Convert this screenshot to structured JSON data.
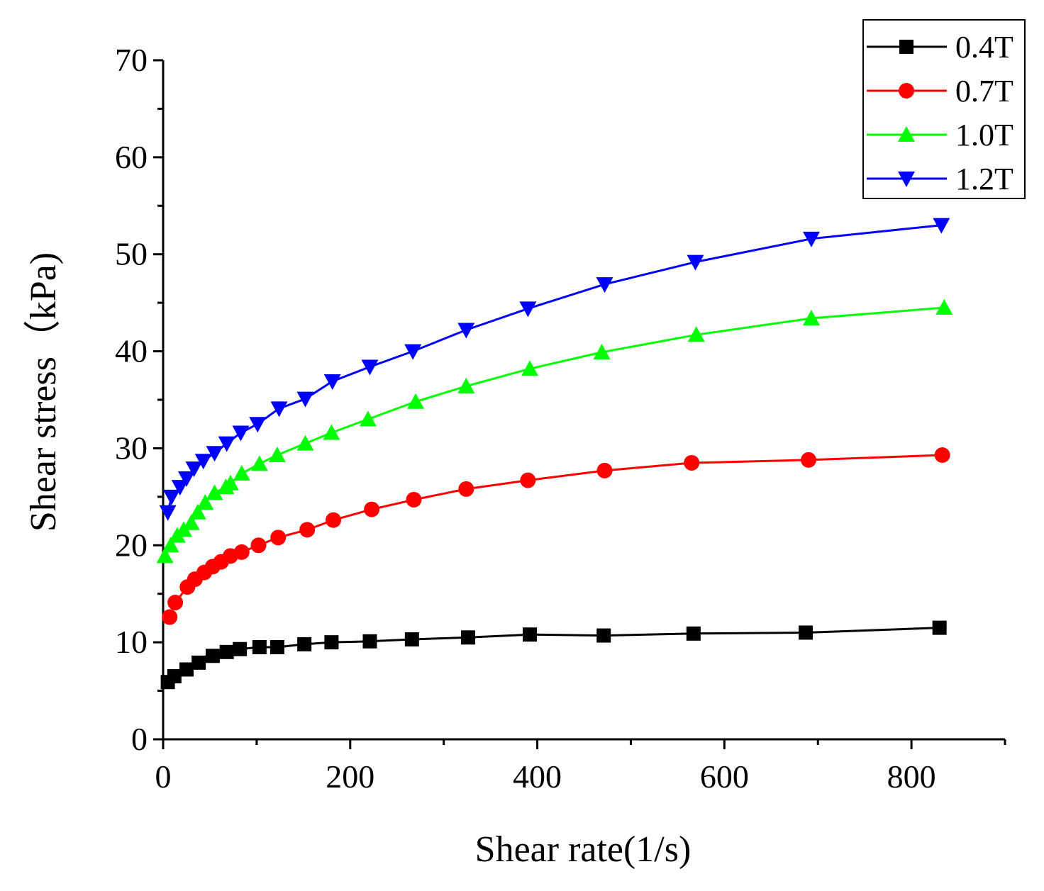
{
  "chart_data": {
    "type": "line",
    "title": "",
    "xlabel": "Shear rate(1/s)",
    "ylabel": "Shear stress（kPa)",
    "xlim": [
      0,
      900
    ],
    "ylim": [
      0,
      70
    ],
    "x_ticks": [
      0,
      200,
      400,
      600,
      800
    ],
    "y_ticks": [
      0,
      10,
      20,
      30,
      40,
      50,
      60,
      70
    ],
    "grid": false,
    "legend_position": "top-right",
    "series": [
      {
        "name": "0.4T",
        "color": "#000000",
        "marker": "square",
        "points": [
          [
            5,
            5.9
          ],
          [
            12,
            6.5
          ],
          [
            25,
            7.2
          ],
          [
            38,
            7.9
          ],
          [
            53,
            8.6
          ],
          [
            68,
            9.0
          ],
          [
            82,
            9.3
          ],
          [
            103,
            9.5
          ],
          [
            122,
            9.5
          ],
          [
            151,
            9.8
          ],
          [
            180,
            10.0
          ],
          [
            221,
            10.1
          ],
          [
            266,
            10.3
          ],
          [
            326,
            10.5
          ],
          [
            392,
            10.8
          ],
          [
            471,
            10.7
          ],
          [
            567,
            10.9
          ],
          [
            687,
            11.0
          ],
          [
            830,
            11.5
          ]
        ]
      },
      {
        "name": "0.7T",
        "color": "#ff0000",
        "marker": "circle",
        "points": [
          [
            7,
            12.6
          ],
          [
            13,
            14.1
          ],
          [
            26,
            15.7
          ],
          [
            34,
            16.5
          ],
          [
            44,
            17.2
          ],
          [
            53,
            17.8
          ],
          [
            62,
            18.3
          ],
          [
            72,
            18.9
          ],
          [
            84,
            19.3
          ],
          [
            102,
            20.0
          ],
          [
            123,
            20.8
          ],
          [
            154,
            21.6
          ],
          [
            182,
            22.6
          ],
          [
            223,
            23.7
          ],
          [
            268,
            24.7
          ],
          [
            324,
            25.8
          ],
          [
            390,
            26.7
          ],
          [
            472,
            27.7
          ],
          [
            565,
            28.5
          ],
          [
            690,
            28.8
          ],
          [
            833,
            29.3
          ]
        ]
      },
      {
        "name": "1.0T",
        "color": "#00ff00",
        "marker": "triangle-up",
        "points": [
          [
            2,
            18.9
          ],
          [
            8,
            20.0
          ],
          [
            15,
            21.0
          ],
          [
            22,
            21.6
          ],
          [
            30,
            22.3
          ],
          [
            37,
            23.4
          ],
          [
            45,
            24.4
          ],
          [
            55,
            25.4
          ],
          [
            67,
            26.0
          ],
          [
            72,
            26.4
          ],
          [
            84,
            27.4
          ],
          [
            103,
            28.4
          ],
          [
            122,
            29.3
          ],
          [
            152,
            30.5
          ],
          [
            180,
            31.6
          ],
          [
            219,
            33.0
          ],
          [
            270,
            34.8
          ],
          [
            324,
            36.4
          ],
          [
            392,
            38.2
          ],
          [
            469,
            39.9
          ],
          [
            570,
            41.7
          ],
          [
            693,
            43.4
          ],
          [
            835,
            44.5
          ]
        ]
      },
      {
        "name": "1.2T",
        "color": "#0000ff",
        "marker": "triangle-down",
        "points": [
          [
            5,
            23.4
          ],
          [
            9,
            25.0
          ],
          [
            18,
            26.0
          ],
          [
            25,
            26.9
          ],
          [
            33,
            27.9
          ],
          [
            43,
            28.7
          ],
          [
            55,
            29.5
          ],
          [
            68,
            30.5
          ],
          [
            83,
            31.6
          ],
          [
            101,
            32.5
          ],
          [
            124,
            34.1
          ],
          [
            152,
            35.1
          ],
          [
            181,
            36.9
          ],
          [
            221,
            38.4
          ],
          [
            267,
            40.0
          ],
          [
            324,
            42.2
          ],
          [
            390,
            44.4
          ],
          [
            472,
            46.9
          ],
          [
            569,
            49.2
          ],
          [
            693,
            51.6
          ],
          [
            832,
            53.0
          ]
        ]
      }
    ]
  }
}
